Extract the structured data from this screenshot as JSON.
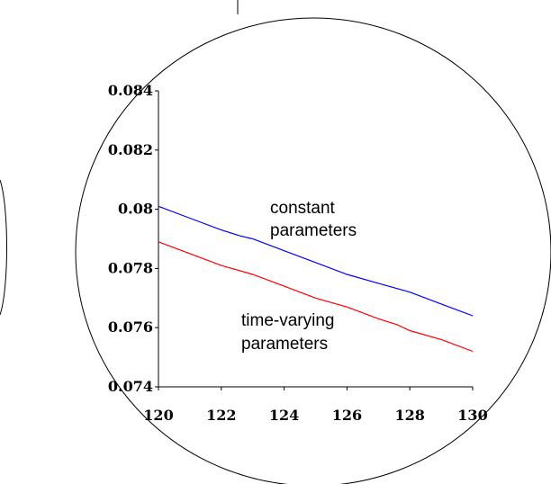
{
  "chart_data": {
    "type": "line",
    "title": "",
    "xlabel": "",
    "ylabel": "",
    "xlim": [
      120,
      130
    ],
    "ylim": [
      0.074,
      0.084
    ],
    "x_ticks": [
      "120",
      "122",
      "124",
      "126",
      "128",
      "130"
    ],
    "y_ticks": [
      "0.074",
      "0.076",
      "0.078",
      "0.08",
      "0.082",
      "0.084"
    ],
    "grid": false,
    "legend": "none",
    "series": [
      {
        "color": "#0000ff",
        "x": [
          120,
          121,
          122,
          122.6,
          123,
          124,
          125,
          126,
          127,
          128,
          129,
          130
        ],
        "y": [
          0.0801,
          0.0797,
          0.0793,
          0.0791,
          0.079,
          0.0786,
          0.0782,
          0.0778,
          0.0775,
          0.0772,
          0.0768,
          0.0764
        ]
      },
      {
        "color": "#ff0000",
        "x": [
          120,
          121,
          122,
          123,
          124,
          125,
          126,
          127,
          127.6,
          128,
          129,
          130
        ],
        "y": [
          0.0789,
          0.0785,
          0.0781,
          0.0778,
          0.0774,
          0.077,
          0.0767,
          0.0763,
          0.0761,
          0.0759,
          0.0756,
          0.0752
        ]
      }
    ],
    "annotations": [
      {
        "lines": [
          "constant",
          "parameters"
        ]
      },
      {
        "lines": [
          "time-varying",
          "parameters"
        ]
      }
    ]
  }
}
